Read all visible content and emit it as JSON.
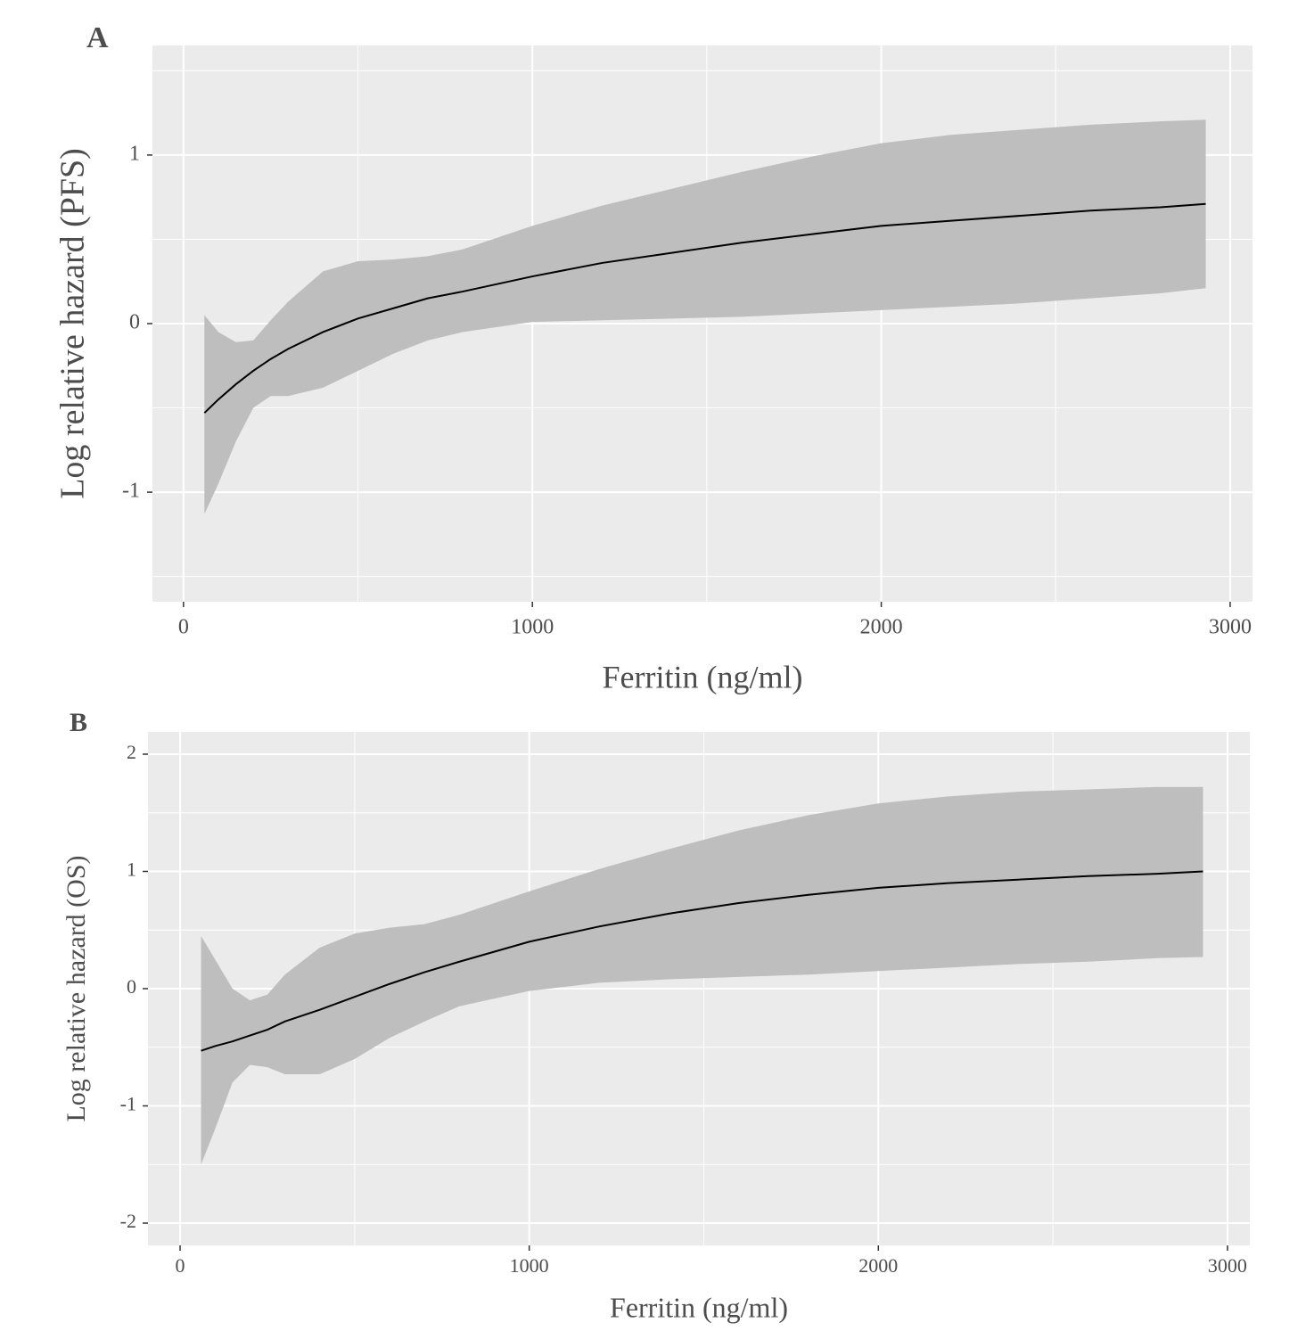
{
  "chart_data": [
    {
      "type": "line",
      "panel": "A",
      "x_label": "Ferritin (ng/ml)",
      "y_label": "Log relative hazard (PFS)",
      "x": [
        60,
        100,
        150,
        200,
        250,
        300,
        400,
        500,
        600,
        700,
        800,
        1000,
        1200,
        1400,
        1600,
        1800,
        2000,
        2200,
        2400,
        2600,
        2800,
        2930
      ],
      "values": [
        -0.53,
        -0.45,
        -0.36,
        -0.28,
        -0.21,
        -0.15,
        -0.05,
        0.03,
        0.09,
        0.15,
        0.19,
        0.28,
        0.36,
        0.42,
        0.48,
        0.53,
        0.58,
        0.61,
        0.64,
        0.67,
        0.69,
        0.71
      ],
      "upper": [
        0.05,
        -0.05,
        -0.11,
        -0.1,
        0.02,
        0.13,
        0.31,
        0.37,
        0.38,
        0.4,
        0.44,
        0.58,
        0.7,
        0.8,
        0.9,
        0.99,
        1.07,
        1.12,
        1.15,
        1.18,
        1.2,
        1.21
      ],
      "lower": [
        -1.13,
        -0.95,
        -0.7,
        -0.5,
        -0.43,
        -0.43,
        -0.38,
        -0.28,
        -0.18,
        -0.1,
        -0.05,
        0.01,
        0.02,
        0.03,
        0.04,
        0.06,
        0.08,
        0.1,
        0.12,
        0.15,
        0.18,
        0.21
      ],
      "color": "#000000",
      "band_color": "#bebebe",
      "grid": true,
      "xlim": [
        -89,
        3064
      ],
      "ylim": [
        -1.65,
        1.65
      ],
      "xticks": [
        0,
        1000,
        2000,
        3000
      ],
      "yticks": [
        -1,
        0,
        1
      ]
    },
    {
      "type": "line",
      "panel": "B",
      "x_label": "Ferritin (ng/ml)",
      "y_label": "Log relative hazard (OS)",
      "x": [
        60,
        100,
        150,
        200,
        250,
        300,
        400,
        500,
        600,
        700,
        800,
        1000,
        1200,
        1400,
        1600,
        1800,
        2000,
        2200,
        2400,
        2600,
        2800,
        2930
      ],
      "values": [
        -0.53,
        -0.49,
        -0.45,
        -0.4,
        -0.35,
        -0.28,
        -0.18,
        -0.07,
        0.04,
        0.14,
        0.23,
        0.4,
        0.53,
        0.64,
        0.73,
        0.8,
        0.86,
        0.9,
        0.93,
        0.96,
        0.98,
        1.0
      ],
      "upper": [
        0.45,
        0.25,
        0.0,
        -0.1,
        -0.05,
        0.12,
        0.35,
        0.47,
        0.52,
        0.55,
        0.63,
        0.83,
        1.02,
        1.19,
        1.35,
        1.48,
        1.58,
        1.64,
        1.68,
        1.7,
        1.72,
        1.72
      ],
      "lower": [
        -1.5,
        -1.2,
        -0.8,
        -0.65,
        -0.67,
        -0.73,
        -0.73,
        -0.6,
        -0.42,
        -0.28,
        -0.15,
        -0.02,
        0.05,
        0.08,
        0.1,
        0.12,
        0.15,
        0.18,
        0.21,
        0.23,
        0.26,
        0.27
      ],
      "color": "#000000",
      "band_color": "#bebebe",
      "grid": true,
      "xlim": [
        -92,
        3064
      ],
      "ylim": [
        -2.19,
        2.19
      ],
      "xticks": [
        0,
        1000,
        2000,
        3000
      ],
      "yticks": [
        -2,
        -1,
        0,
        1,
        2
      ]
    }
  ]
}
